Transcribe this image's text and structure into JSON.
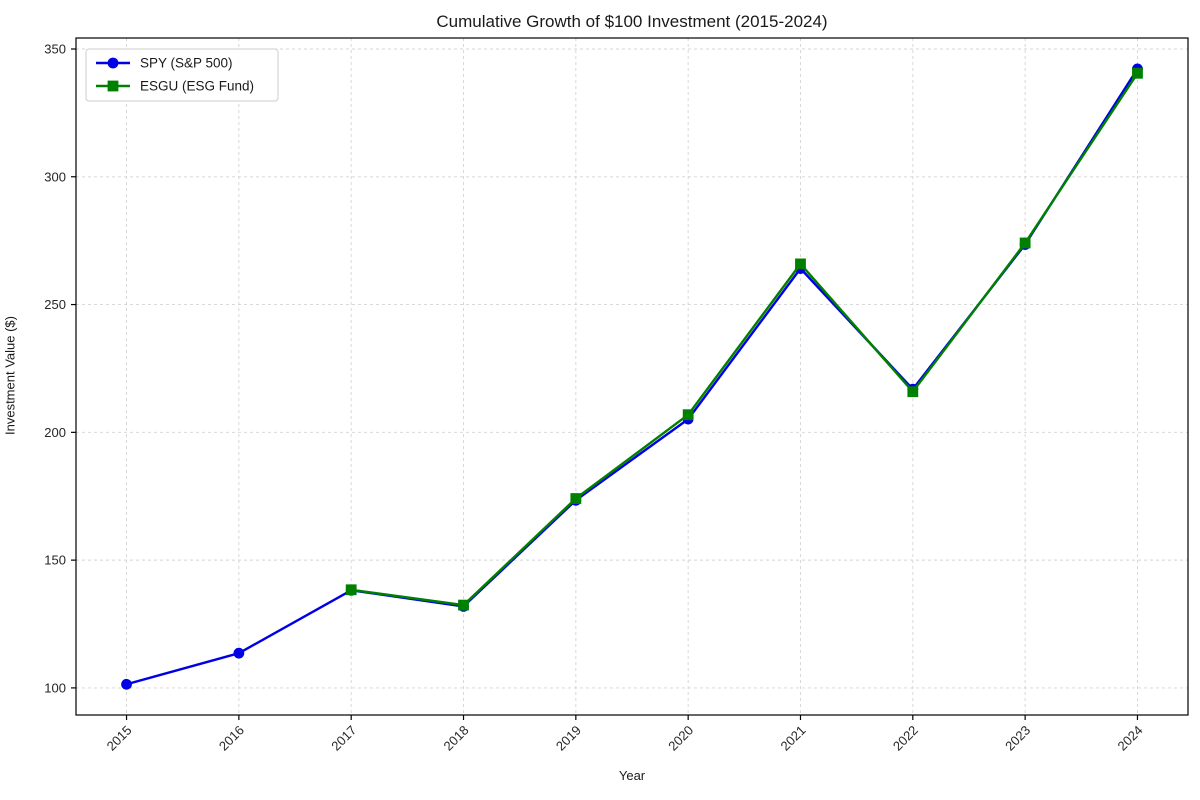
{
  "chart_data": {
    "type": "line",
    "title": "Cumulative Growth of $100 Investment (2015-2024)",
    "xlabel": "Year",
    "ylabel": "Investment Value ($)",
    "x": [
      2015,
      2016,
      2017,
      2018,
      2019,
      2020,
      2021,
      2022,
      2023,
      2024
    ],
    "series": [
      {
        "name": "SPY (S&P 500)",
        "color": "#0000e6",
        "marker": "circle",
        "values": [
          101.4,
          113.6,
          138.2,
          131.9,
          173.4,
          205.2,
          264.1,
          216.9,
          273.5,
          342.2
        ]
      },
      {
        "name": "ESGU (ESG Fund)",
        "color": "#008000",
        "marker": "square",
        "values": [
          null,
          null,
          138.4,
          132.4,
          174.1,
          206.9,
          265.9,
          215.9,
          274.1,
          340.5
        ]
      }
    ],
    "xticks": [
      2015,
      2016,
      2017,
      2018,
      2019,
      2020,
      2021,
      2022,
      2023,
      2024
    ],
    "yticks": [
      100,
      150,
      200,
      250,
      300,
      350
    ],
    "xlim": [
      2014.55,
      2024.45
    ],
    "ylim": [
      89.4,
      354.3
    ],
    "grid": true,
    "grid_color": "#d4d4d4",
    "legend_position": "upper left",
    "axis_color": "#000000",
    "tick_label_color": "#262626",
    "legend_border_color": "#cccccc",
    "legend_background": "#ffffff"
  }
}
